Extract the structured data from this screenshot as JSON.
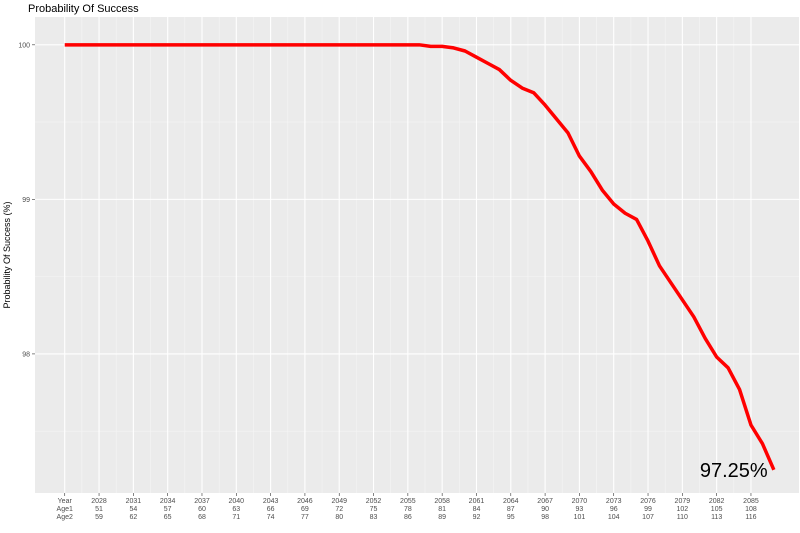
{
  "chart_data": {
    "type": "line",
    "title": "Probability Of Success",
    "ylabel": "Probability Of Success (%)",
    "xlabel": "",
    "ylim": [
      97.1,
      100.18
    ],
    "xlim": [
      2022.4,
      2089.2
    ],
    "yticks": [
      98,
      99,
      100
    ],
    "xticks": [
      2025,
      2028,
      2031,
      2034,
      2037,
      2040,
      2043,
      2046,
      2049,
      2052,
      2055,
      2058,
      2061,
      2064,
      2067,
      2070,
      2073,
      2076,
      2079,
      2082,
      2085
    ],
    "x_rows": [
      [
        "Year",
        "2028",
        "2031",
        "2034",
        "2037",
        "2040",
        "2043",
        "2046",
        "2049",
        "2052",
        "2055",
        "2058",
        "2061",
        "2064",
        "2067",
        "2070",
        "2073",
        "2076",
        "2079",
        "2082",
        "2085"
      ],
      [
        "Age1",
        "51",
        "54",
        "57",
        "60",
        "63",
        "66",
        "69",
        "72",
        "75",
        "78",
        "81",
        "84",
        "87",
        "90",
        "93",
        "96",
        "99",
        "102",
        "105",
        "108"
      ],
      [
        "Age2",
        "59",
        "62",
        "65",
        "68",
        "71",
        "74",
        "77",
        "80",
        "83",
        "86",
        "89",
        "92",
        "95",
        "98",
        "101",
        "104",
        "107",
        "110",
        "113",
        "116"
      ]
    ],
    "grid": true,
    "legend": "none",
    "end_label": "97.25%",
    "series": [
      {
        "color": "#ff0000",
        "x": [
          2025,
          2026,
          2027,
          2028,
          2029,
          2030,
          2031,
          2032,
          2033,
          2034,
          2035,
          2036,
          2037,
          2038,
          2039,
          2040,
          2041,
          2042,
          2043,
          2044,
          2045,
          2046,
          2047,
          2048,
          2049,
          2050,
          2051,
          2052,
          2053,
          2054,
          2055,
          2056,
          2057,
          2058,
          2059,
          2060,
          2061,
          2062,
          2063,
          2064,
          2065,
          2066,
          2067,
          2068,
          2069,
          2070,
          2071,
          2072,
          2073,
          2074,
          2075,
          2076,
          2077,
          2078,
          2079,
          2080,
          2081,
          2082,
          2083,
          2084,
          2085,
          2086,
          2087
        ],
        "values": [
          100,
          100,
          100,
          100,
          100,
          100,
          100,
          100,
          100,
          100,
          100,
          100,
          100,
          100,
          100,
          100,
          100,
          100,
          100,
          100,
          100,
          100,
          100,
          100,
          100,
          100,
          100,
          100,
          100,
          100,
          100,
          100,
          99.99,
          99.99,
          99.98,
          99.96,
          99.92,
          99.88,
          99.84,
          99.77,
          99.72,
          99.69,
          99.61,
          99.52,
          99.43,
          99.28,
          99.18,
          99.06,
          98.97,
          98.91,
          98.87,
          98.73,
          98.57,
          98.46,
          98.35,
          98.24,
          98.1,
          97.98,
          97.91,
          97.77,
          97.54,
          97.42,
          97.25
        ]
      }
    ]
  }
}
